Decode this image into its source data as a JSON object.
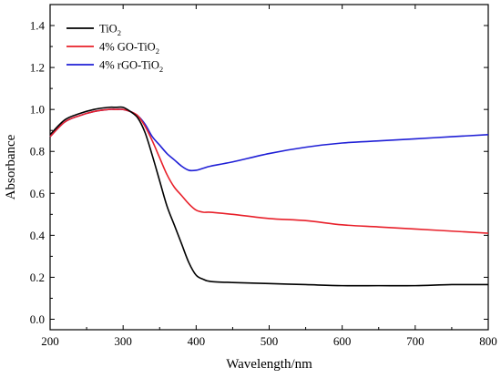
{
  "chart_data": {
    "type": "line",
    "xlabel": "Wavelength/nm",
    "ylabel": "Absorbance",
    "xlim": [
      200,
      800
    ],
    "ylim": [
      -0.05,
      1.5
    ],
    "xticks": [
      200,
      300,
      400,
      500,
      600,
      700,
      800
    ],
    "yticks": [
      0.0,
      0.2,
      0.4,
      0.6,
      0.8,
      1.0,
      1.2,
      1.4
    ],
    "xtick_labels": [
      "200",
      "300",
      "400",
      "500",
      "600",
      "700",
      "800"
    ],
    "ytick_labels": [
      "0.0",
      "0.2",
      "0.4",
      "0.6",
      "0.8",
      "1.0",
      "1.2",
      "1.4"
    ],
    "grid": false,
    "legend_position": "top-left",
    "series": [
      {
        "name": "TiO2",
        "legend_main": "TiO",
        "legend_sub": "2",
        "legend_tail": "",
        "color": "#000000",
        "x": [
          200,
          220,
          240,
          260,
          280,
          290,
          300,
          310,
          320,
          330,
          340,
          350,
          360,
          370,
          380,
          390,
          400,
          410,
          420,
          450,
          500,
          550,
          600,
          650,
          700,
          750,
          800
        ],
        "y": [
          0.88,
          0.95,
          0.98,
          1.0,
          1.01,
          1.01,
          1.01,
          0.99,
          0.96,
          0.89,
          0.78,
          0.66,
          0.54,
          0.45,
          0.36,
          0.27,
          0.21,
          0.19,
          0.18,
          0.175,
          0.17,
          0.165,
          0.16,
          0.16,
          0.16,
          0.165,
          0.165
        ]
      },
      {
        "name": "4% GO-TiO2",
        "legend_main": "4% GO-TiO",
        "legend_sub": "2",
        "legend_tail": "",
        "color": "#e8202a",
        "x": [
          200,
          220,
          240,
          260,
          280,
          290,
          300,
          310,
          320,
          330,
          340,
          350,
          360,
          370,
          380,
          390,
          400,
          410,
          420,
          450,
          500,
          550,
          600,
          650,
          700,
          750,
          800
        ],
        "y": [
          0.87,
          0.94,
          0.97,
          0.99,
          1.0,
          1.0,
          1.0,
          0.99,
          0.97,
          0.92,
          0.85,
          0.77,
          0.69,
          0.63,
          0.59,
          0.55,
          0.52,
          0.51,
          0.51,
          0.5,
          0.48,
          0.47,
          0.45,
          0.44,
          0.43,
          0.42,
          0.41
        ]
      },
      {
        "name": "4% rGO-TiO2",
        "legend_main": "4% rGO-TiO",
        "legend_sub": "2",
        "legend_tail": "",
        "color": "#1f1fd6",
        "x": [
          200,
          220,
          240,
          260,
          280,
          290,
          300,
          310,
          320,
          330,
          340,
          350,
          360,
          370,
          380,
          390,
          400,
          410,
          420,
          450,
          500,
          550,
          600,
          650,
          700,
          750,
          800
        ],
        "y": [
          0.87,
          0.94,
          0.97,
          0.99,
          1.0,
          1.0,
          1.0,
          0.99,
          0.97,
          0.93,
          0.87,
          0.83,
          0.79,
          0.76,
          0.73,
          0.71,
          0.71,
          0.72,
          0.73,
          0.75,
          0.79,
          0.82,
          0.84,
          0.85,
          0.86,
          0.87,
          0.88
        ]
      }
    ]
  }
}
